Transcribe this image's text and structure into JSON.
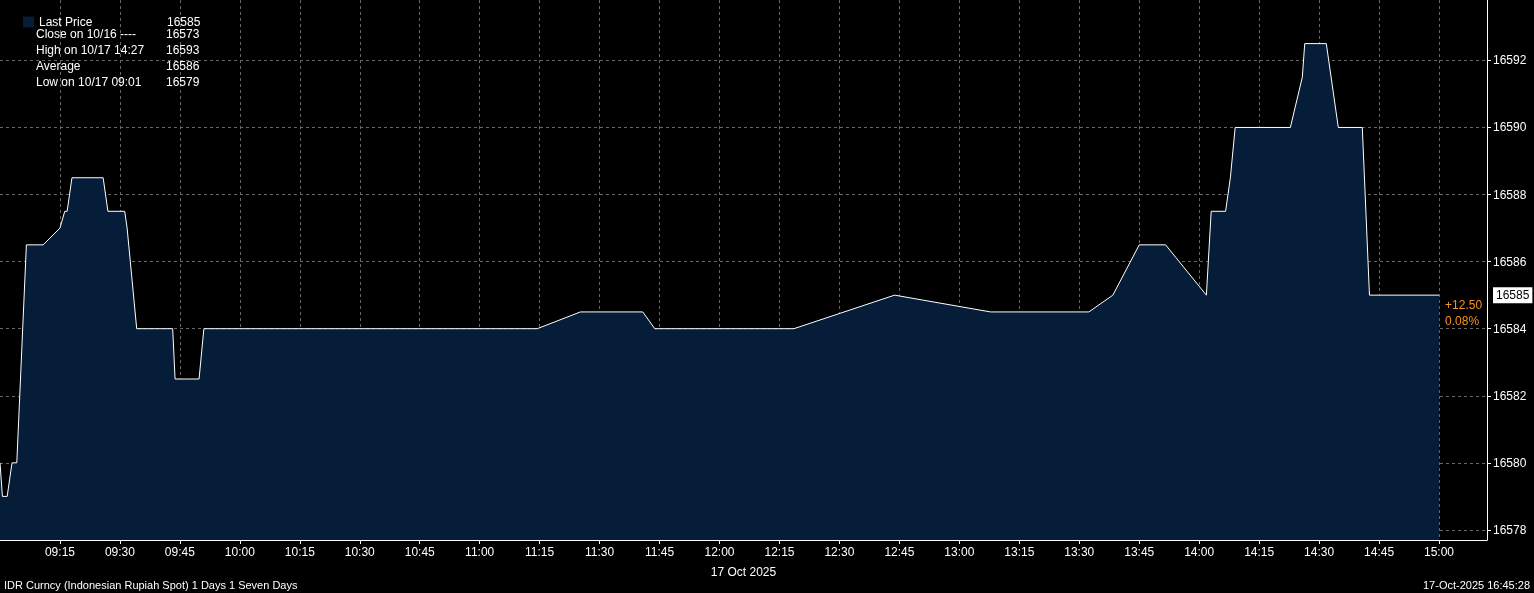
{
  "chart_data": {
    "type": "area",
    "xlabel": "17 Oct 2025",
    "x": [
      9.0,
      9.01,
      9.03,
      9.05,
      9.07,
      9.11,
      9.18,
      9.25,
      9.27,
      9.28,
      9.3,
      9.43,
      9.45,
      9.52,
      9.53,
      9.57,
      9.72,
      9.73,
      9.83,
      9.85,
      11.24,
      11.42,
      11.68,
      11.73,
      12.31,
      12.73,
      13.13,
      13.54,
      13.64,
      13.75,
      13.86,
      14.03,
      14.05,
      14.11,
      14.13,
      14.15,
      14.38,
      14.43,
      14.44,
      14.53,
      14.58,
      14.68,
      14.71,
      15.0
    ],
    "series": [
      {
        "name": "Last Price",
        "color": "#061d3a",
        "values": [
          16580,
          16579,
          16579,
          16580,
          16580,
          16586.5,
          16586.5,
          16587,
          16587.5,
          16587.5,
          16588.5,
          16588.5,
          16587.5,
          16587.5,
          16587,
          16584,
          16584,
          16582.5,
          16582.5,
          16584,
          16584,
          16584.5,
          16584.5,
          16584,
          16584,
          16585,
          16584.5,
          16584.5,
          16585,
          16586.5,
          16586.5,
          16585,
          16587.5,
          16587.5,
          16588.5,
          16590,
          16590,
          16591.5,
          16592.5,
          16592.5,
          16590,
          16590,
          16585,
          16585
        ]
      }
    ],
    "xlim": [
      9.0,
      15.2
    ],
    "xticks": [
      {
        "value": 9.25,
        "label": "09:15"
      },
      {
        "value": 9.5,
        "label": "09:30"
      },
      {
        "value": 9.75,
        "label": "09:45"
      },
      {
        "value": 10,
        "label": "10:00"
      },
      {
        "value": 10.25,
        "label": "10:15"
      },
      {
        "value": 10.5,
        "label": "10:30"
      },
      {
        "value": 10.75,
        "label": "10:45"
      },
      {
        "value": 11,
        "label": "11:00"
      },
      {
        "value": 11.25,
        "label": "11:15"
      },
      {
        "value": 11.5,
        "label": "11:30"
      },
      {
        "value": 11.75,
        "label": "11:45"
      },
      {
        "value": 12,
        "label": "12:00"
      },
      {
        "value": 12.25,
        "label": "12:15"
      },
      {
        "value": 12.5,
        "label": "12:30"
      },
      {
        "value": 12.75,
        "label": "12:45"
      },
      {
        "value": 13,
        "label": "13:00"
      },
      {
        "value": 13.25,
        "label": "13:15"
      },
      {
        "value": 13.5,
        "label": "13:30"
      },
      {
        "value": 13.75,
        "label": "13:45"
      },
      {
        "value": 14,
        "label": "14:00"
      },
      {
        "value": 14.25,
        "label": "14:15"
      },
      {
        "value": 14.5,
        "label": "14:30"
      },
      {
        "value": 14.75,
        "label": "14:45"
      },
      {
        "value": 15,
        "label": "15:00"
      }
    ],
    "ylim": [
      16577.7,
      16593.8
    ],
    "yticks": [
      16578,
      16580,
      16582,
      16584,
      16586,
      16588,
      16590,
      16592
    ],
    "grid": true,
    "legend": "top left",
    "marker": "none",
    "line_style": "solid",
    "annotations": [
      "16585",
      "Close on 10/16 ----",
      "16573",
      "High on 10/17 14:27",
      "16593",
      "Average",
      "16586",
      "Low on 10/17 09:01",
      "16579",
      "+12.50",
      "0.08%",
      "16585",
      "IDR Curncy (Indonesian Rupiah Spot) 1 Days 1 Seven Days",
      "17-Oct-2025 16:45:28"
    ]
  }
}
